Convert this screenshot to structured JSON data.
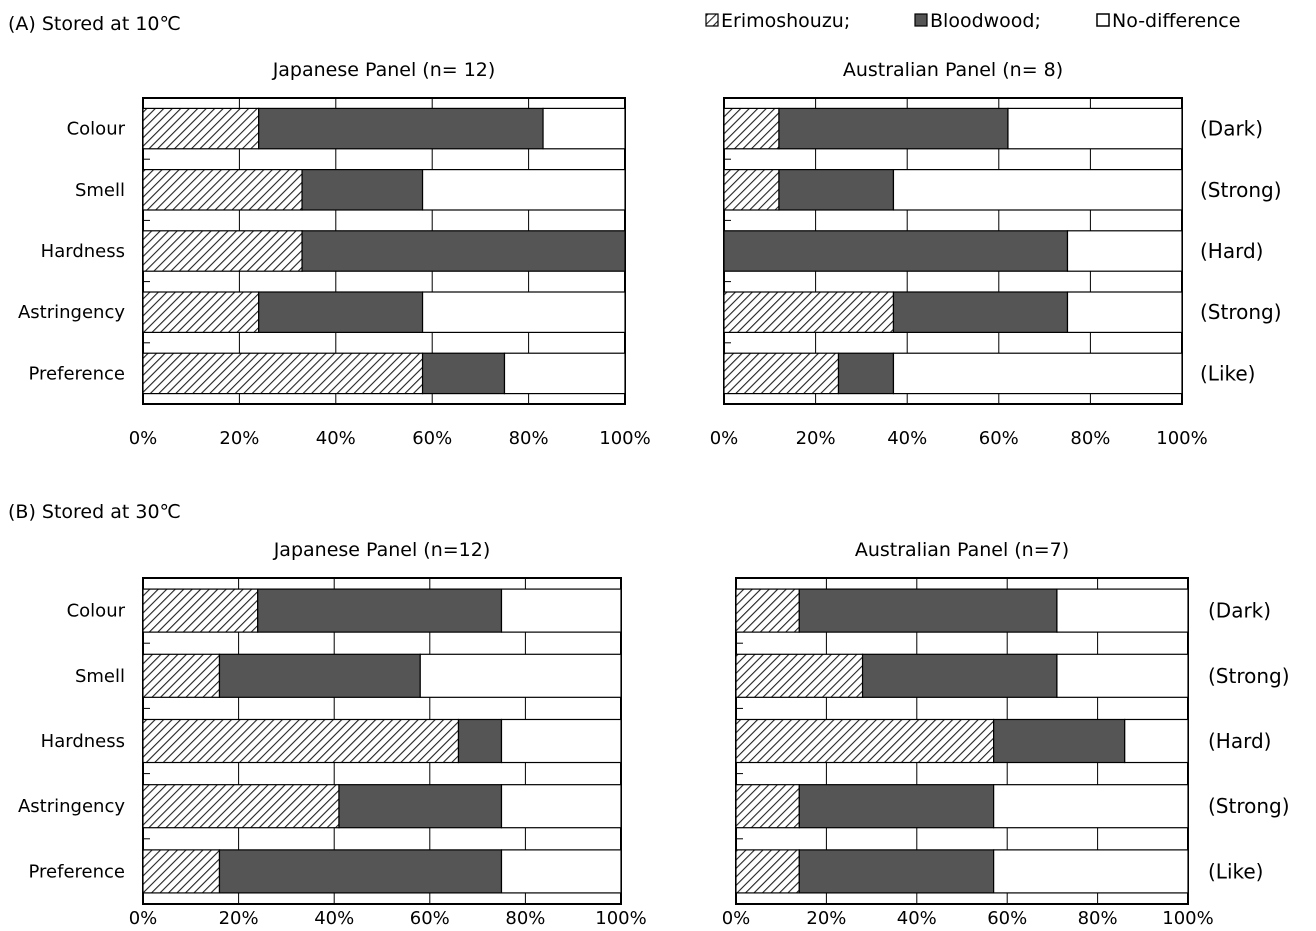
{
  "legend": {
    "items": [
      {
        "label": "Erimoshouzu;",
        "pattern": "hatch"
      },
      {
        "label": "Bloodwood;",
        "pattern": "dark"
      },
      {
        "label": "No-difference",
        "pattern": "empty"
      }
    ]
  },
  "sections": [
    {
      "label": "(A) Stored at 10℃"
    },
    {
      "label": "(B) Stored at 30℃"
    }
  ],
  "colors": {
    "bloodwood": "#555555",
    "erimoshouzu": "#ffffff",
    "no_difference": "#ffffff",
    "hatch": "#222222"
  },
  "chart_data": [
    {
      "type": "bar",
      "stacked": true,
      "orientation": "horizontal",
      "title": "Japanese Panel (n= 12)",
      "categories": [
        "Colour",
        "Smell",
        "Hardness",
        "Astringency",
        "Preference"
      ],
      "x_ticks": [
        "0%",
        "20%",
        "40%",
        "60%",
        "80%",
        "100%"
      ],
      "xlim": [
        0,
        100
      ],
      "series": [
        {
          "name": "Erimoshouzu",
          "values": [
            24,
            33,
            33,
            24,
            58
          ]
        },
        {
          "name": "Bloodwood",
          "values": [
            59,
            25,
            67,
            34,
            17
          ]
        },
        {
          "name": "No-difference",
          "values": [
            17,
            42,
            0,
            42,
            25
          ]
        }
      ]
    },
    {
      "type": "bar",
      "stacked": true,
      "orientation": "horizontal",
      "title": "Australian Panel (n= 8)",
      "categories": [
        "Colour",
        "Smell",
        "Hardness",
        "Astringency",
        "Preference"
      ],
      "right_labels": [
        "(Dark)",
        "(Strong)",
        "(Hard)",
        "(Strong)",
        "(Like)"
      ],
      "x_ticks": [
        "0%",
        "20%",
        "40%",
        "60%",
        "80%",
        "100%"
      ],
      "xlim": [
        0,
        100
      ],
      "series": [
        {
          "name": "Erimoshouzu",
          "values": [
            12,
            12,
            0,
            37,
            25
          ]
        },
        {
          "name": "Bloodwood",
          "values": [
            50,
            25,
            75,
            38,
            12
          ]
        },
        {
          "name": "No-difference",
          "values": [
            38,
            63,
            25,
            25,
            63
          ]
        }
      ]
    },
    {
      "type": "bar",
      "stacked": true,
      "orientation": "horizontal",
      "title": "Japanese Panel (n=12)",
      "categories": [
        "Colour",
        "Smell",
        "Hardness",
        "Astringency",
        "Preference"
      ],
      "x_ticks": [
        "0%",
        "20%",
        "40%",
        "60%",
        "80%",
        "100%"
      ],
      "xlim": [
        0,
        100
      ],
      "series": [
        {
          "name": "Erimoshouzu",
          "values": [
            24,
            16,
            66,
            41,
            16
          ]
        },
        {
          "name": "Bloodwood",
          "values": [
            51,
            42,
            9,
            34,
            59
          ]
        },
        {
          "name": "No-difference",
          "values": [
            25,
            42,
            25,
            25,
            25
          ]
        }
      ]
    },
    {
      "type": "bar",
      "stacked": true,
      "orientation": "horizontal",
      "title": "Australian Panel (n=7)",
      "categories": [
        "Colour",
        "Smell",
        "Hardness",
        "Astringency",
        "Preference"
      ],
      "right_labels": [
        "(Dark)",
        "(Strong)",
        "(Hard)",
        "(Strong)",
        "(Like)"
      ],
      "x_ticks": [
        "0%",
        "20%",
        "40%",
        "60%",
        "80%",
        "100%"
      ],
      "xlim": [
        0,
        100
      ],
      "series": [
        {
          "name": "Erimoshouzu",
          "values": [
            14,
            28,
            57,
            14,
            14
          ]
        },
        {
          "name": "Bloodwood",
          "values": [
            57,
            43,
            29,
            43,
            43
          ]
        },
        {
          "name": "No-difference",
          "values": [
            29,
            29,
            14,
            43,
            43
          ]
        }
      ]
    }
  ]
}
